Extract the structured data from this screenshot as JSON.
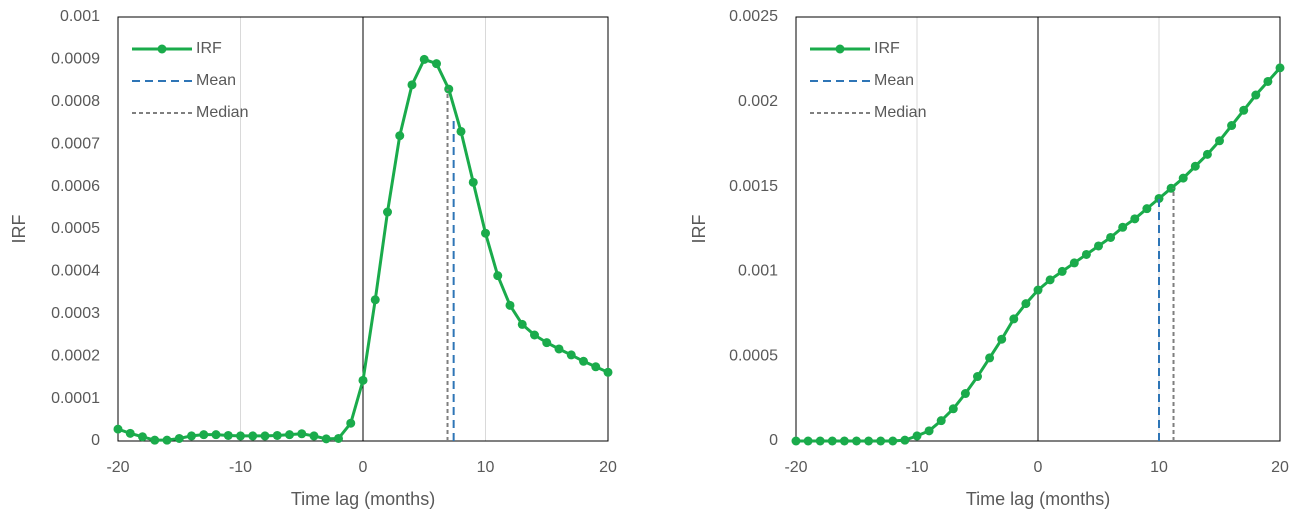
{
  "chart_data": [
    {
      "type": "line",
      "xlabel": "Time lag (months)",
      "ylabel": "IRF",
      "xlim": [
        -20,
        20
      ],
      "xticks": [
        -20,
        -10,
        0,
        10,
        20
      ],
      "ylim": [
        0,
        0.001
      ],
      "yticks": [
        0,
        0.0001,
        0.0002,
        0.0003,
        0.0004,
        0.0005,
        0.0006,
        0.0007,
        0.0008,
        0.0009,
        0.001
      ],
      "grid": true,
      "legend": "upper left",
      "series": [
        {
          "name": "IRF",
          "color": "#1aab4b",
          "x": [
            -20,
            -19,
            -18,
            -17,
            -16,
            -15,
            -14,
            -13,
            -12,
            -11,
            -10,
            -9,
            -8,
            -7,
            -6,
            -5,
            -4,
            -3,
            -2,
            -1,
            0,
            1,
            2,
            3,
            4,
            5,
            6,
            7,
            8,
            9,
            10,
            11,
            12,
            13,
            14,
            15,
            16,
            17,
            18,
            19,
            20
          ],
          "values": [
            2.8e-05,
            1.8e-05,
            1e-05,
            2e-06,
            2e-06,
            6e-06,
            1.2e-05,
            1.5e-05,
            1.5e-05,
            1.3e-05,
            1.2e-05,
            1.2e-05,
            1.2e-05,
            1.3e-05,
            1.5e-05,
            1.7e-05,
            1.2e-05,
            5e-06,
            6e-06,
            4.2e-05,
            0.000143,
            0.000333,
            0.00054,
            0.00072,
            0.00084,
            0.0009,
            0.00089,
            0.00083,
            0.00073,
            0.00061,
            0.00049,
            0.00039,
            0.00032,
            0.000275,
            0.00025,
            0.000232,
            0.000217,
            0.000203,
            0.000188,
            0.000175,
            0.000162
          ]
        },
        {
          "name": "Mean",
          "color": "#2e75b6",
          "x": [
            7.4,
            7.4
          ],
          "values": [
            0,
            0.00076
          ]
        },
        {
          "name": "Median",
          "color": "#7f7f7f",
          "x": [
            6.9,
            6.9
          ],
          "values": [
            0,
            0.00083
          ]
        }
      ]
    },
    {
      "type": "line",
      "xlabel": "Time lag (months)",
      "ylabel": "IRF",
      "xlim": [
        -20,
        20
      ],
      "xticks": [
        -20,
        -10,
        0,
        10,
        20
      ],
      "ylim": [
        0,
        0.0025
      ],
      "yticks": [
        0,
        0.0005,
        0.001,
        0.0015,
        0.002,
        0.0025
      ],
      "grid": true,
      "legend": "upper left",
      "series": [
        {
          "name": "IRF",
          "color": "#1aab4b",
          "x": [
            -20,
            -19,
            -18,
            -17,
            -16,
            -15,
            -14,
            -13,
            -12,
            -11,
            -10,
            -9,
            -8,
            -7,
            -6,
            -5,
            -4,
            -3,
            -2,
            -1,
            0,
            1,
            2,
            3,
            4,
            5,
            6,
            7,
            8,
            9,
            10,
            11,
            12,
            13,
            14,
            15,
            16,
            17,
            18,
            19,
            20
          ],
          "values": [
            0,
            0,
            0,
            0,
            0,
            0,
            0,
            0,
            0,
            5e-06,
            3e-05,
            6e-05,
            0.00012,
            0.00019,
            0.00028,
            0.00038,
            0.00049,
            0.0006,
            0.00072,
            0.00081,
            0.00089,
            0.00095,
            0.001,
            0.00105,
            0.0011,
            0.00115,
            0.0012,
            0.00126,
            0.00131,
            0.00137,
            0.00143,
            0.00149,
            0.00155,
            0.00162,
            0.00169,
            0.00177,
            0.00186,
            0.00195,
            0.00204,
            0.00212,
            0.0022
          ]
        },
        {
          "name": "Mean",
          "color": "#2e75b6",
          "x": [
            10,
            10
          ],
          "values": [
            0,
            0.00143
          ]
        },
        {
          "name": "Median",
          "color": "#7f7f7f",
          "x": [
            11.2,
            11.2
          ],
          "values": [
            0,
            0.00149
          ]
        }
      ]
    }
  ]
}
